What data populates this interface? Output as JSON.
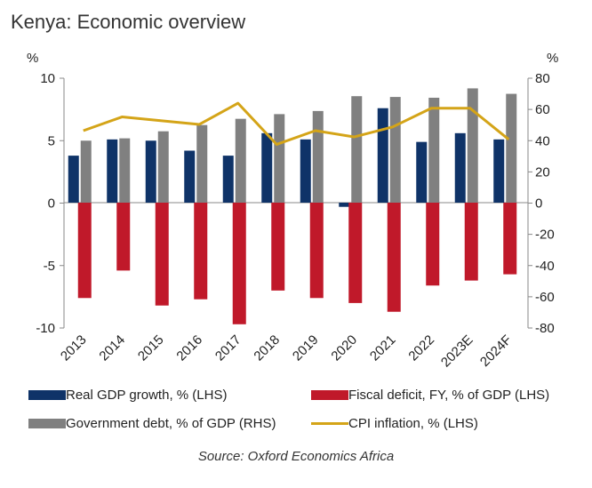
{
  "title": "Kenya: Economic overview",
  "source": "Source: Oxford Economics Africa",
  "chart_data": {
    "type": "bar",
    "categories": [
      "2013",
      "2014",
      "2015",
      "2016",
      "2017",
      "2018",
      "2019",
      "2020",
      "2021",
      "2022",
      "2023E",
      "2024F"
    ],
    "left_axis": {
      "unit": "%",
      "ylim": [
        -10,
        10
      ],
      "ticks": [
        10,
        5,
        0,
        -5,
        -10
      ]
    },
    "right_axis": {
      "unit": "%",
      "ylim": [
        -80,
        80
      ],
      "ticks": [
        80,
        60,
        40,
        20,
        0,
        -20,
        -40,
        -60,
        -80
      ]
    },
    "series": [
      {
        "name": "Real GDP growth, % (LHS)",
        "type": "bar",
        "axis": "left",
        "color": "#0f3368",
        "values": [
          3.8,
          5.1,
          5.0,
          4.2,
          3.8,
          5.6,
          5.1,
          -0.3,
          7.6,
          4.9,
          5.6,
          5.1
        ]
      },
      {
        "name": "Fiscal deficit, FY, % of GDP (LHS)",
        "type": "bar",
        "axis": "left",
        "color": "#c0192a",
        "values": [
          -7.6,
          -5.4,
          -8.2,
          -7.7,
          -9.7,
          -7.0,
          -7.6,
          -8.0,
          -8.7,
          -6.6,
          -6.2,
          -5.7
        ]
      },
      {
        "name": "Government debt, % of GDP (RHS)",
        "type": "bar",
        "axis": "right",
        "color": "#808080",
        "values": [
          40,
          41.5,
          46,
          50,
          54,
          57,
          59,
          68.5,
          68,
          67.5,
          73.5,
          70
        ]
      },
      {
        "name": "CPI inflation, % (LHS)",
        "type": "line",
        "axis": "left",
        "color": "#d4a418",
        "values": [
          5.8,
          6.9,
          6.6,
          6.3,
          8.0,
          4.7,
          5.8,
          5.3,
          6.1,
          7.6,
          7.6,
          5.1
        ]
      }
    ]
  }
}
